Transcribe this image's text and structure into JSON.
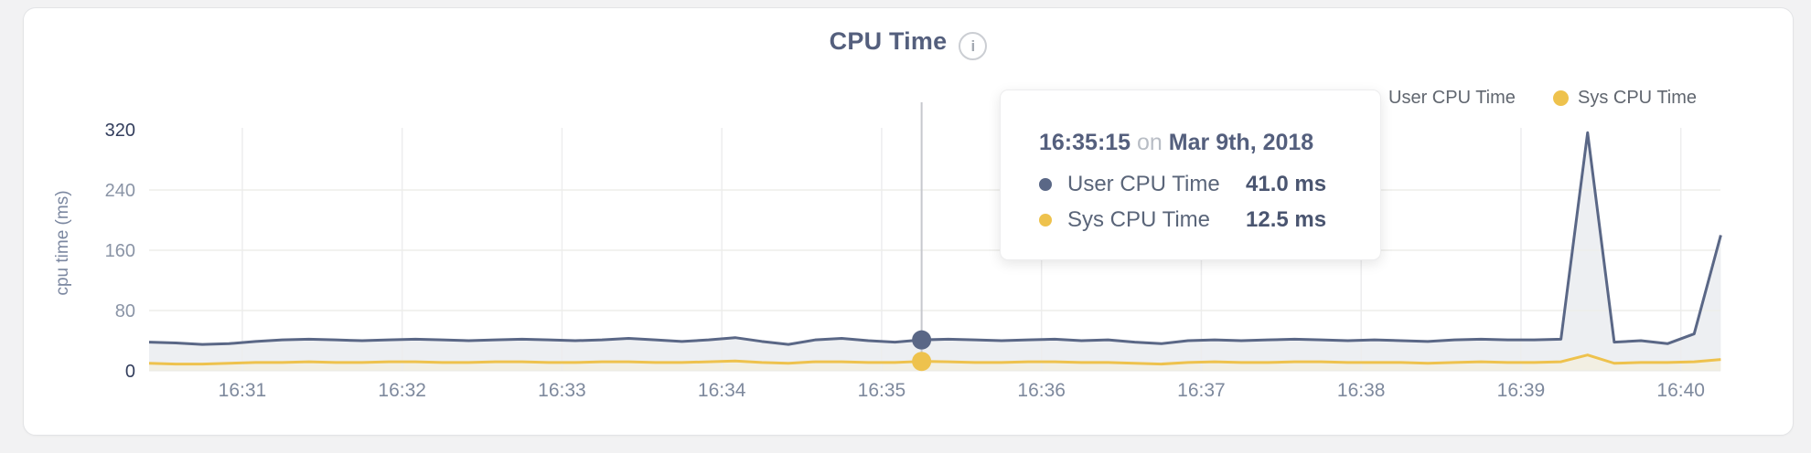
{
  "page": {
    "background": "#f2f2f3",
    "card_background": "#ffffff",
    "card_border": "#e3e4e6"
  },
  "header": {
    "title": "CPU Time",
    "info_glyph": "i"
  },
  "legend": {
    "items": [
      {
        "label": "User CPU Time",
        "color": "#5a6786"
      },
      {
        "label": "Sys CPU Time",
        "color": "#eec24d"
      }
    ]
  },
  "tooltip": {
    "time": "16:35:15",
    "connector": "on",
    "date": "Mar 9th, 2018",
    "rows": [
      {
        "label": "User CPU Time",
        "value": "41.0 ms",
        "color": "#5a6786"
      },
      {
        "label": "Sys CPU Time",
        "value": "12.5 ms",
        "color": "#eec24d"
      }
    ]
  },
  "chart_data": {
    "type": "area",
    "title": "CPU Time",
    "xlabel": "",
    "ylabel": "cpu time (ms)",
    "ylim": [
      0,
      320
    ],
    "y_ticks": [
      0,
      80,
      160,
      240,
      320
    ],
    "y_grid": [
      80,
      160,
      240
    ],
    "y_tick_emphasis": [
      0,
      320
    ],
    "x_ticks": [
      "16:31",
      "16:32",
      "16:33",
      "16:34",
      "16:35",
      "16:36",
      "16:37",
      "16:38",
      "16:39",
      "16:40"
    ],
    "grid": true,
    "legend_position": "top-right",
    "x": [
      "16:30:25",
      "16:30:35",
      "16:30:45",
      "16:30:55",
      "16:31:05",
      "16:31:15",
      "16:31:25",
      "16:31:35",
      "16:31:45",
      "16:31:55",
      "16:32:05",
      "16:32:15",
      "16:32:25",
      "16:32:35",
      "16:32:45",
      "16:32:55",
      "16:33:05",
      "16:33:15",
      "16:33:25",
      "16:33:35",
      "16:33:45",
      "16:33:55",
      "16:34:05",
      "16:34:15",
      "16:34:25",
      "16:34:35",
      "16:34:45",
      "16:34:55",
      "16:35:05",
      "16:35:15",
      "16:35:25",
      "16:35:35",
      "16:35:45",
      "16:35:55",
      "16:36:05",
      "16:36:15",
      "16:36:25",
      "16:36:35",
      "16:36:45",
      "16:36:55",
      "16:37:05",
      "16:37:15",
      "16:37:25",
      "16:37:35",
      "16:37:45",
      "16:37:55",
      "16:38:05",
      "16:38:15",
      "16:38:25",
      "16:38:35",
      "16:38:45",
      "16:38:55",
      "16:39:05",
      "16:39:15",
      "16:39:25",
      "16:39:35",
      "16:39:45",
      "16:39:55",
      "16:40:05",
      "16:40:15"
    ],
    "series": [
      {
        "name": "User CPU Time",
        "unit": "ms",
        "color": "#5a6786",
        "fill": "#edeff2",
        "values": [
          38,
          37,
          35,
          36,
          39,
          41,
          42,
          41,
          40,
          41,
          42,
          41,
          40,
          41,
          42,
          41,
          40,
          41,
          43,
          41,
          39,
          41,
          44,
          39,
          35,
          41,
          43,
          40,
          38,
          41,
          42,
          41,
          40,
          41,
          42,
          40,
          41,
          38,
          36,
          40,
          41,
          40,
          41,
          42,
          41,
          40,
          41,
          40,
          39,
          41,
          42,
          41,
          41,
          42,
          316,
          38,
          40,
          36,
          49,
          180
        ]
      },
      {
        "name": "Sys CPU Time",
        "unit": "ms",
        "color": "#eec24d",
        "fill": "#f2efe3",
        "values": [
          10,
          9,
          9,
          10,
          11,
          11,
          12,
          11,
          11,
          12,
          12,
          11,
          11,
          12,
          12,
          11,
          11,
          12,
          12,
          11,
          11,
          12,
          13,
          11,
          10,
          12,
          12,
          11,
          11,
          12.5,
          12,
          11,
          11,
          12,
          12,
          11,
          11,
          10,
          9,
          11,
          12,
          11,
          11,
          12,
          12,
          11,
          11,
          11,
          10,
          11,
          12,
          11,
          11,
          12,
          21,
          10,
          11,
          11,
          12,
          15
        ]
      }
    ],
    "highlight": {
      "x": "16:35:15",
      "values": [
        41.0,
        12.5
      ]
    }
  }
}
